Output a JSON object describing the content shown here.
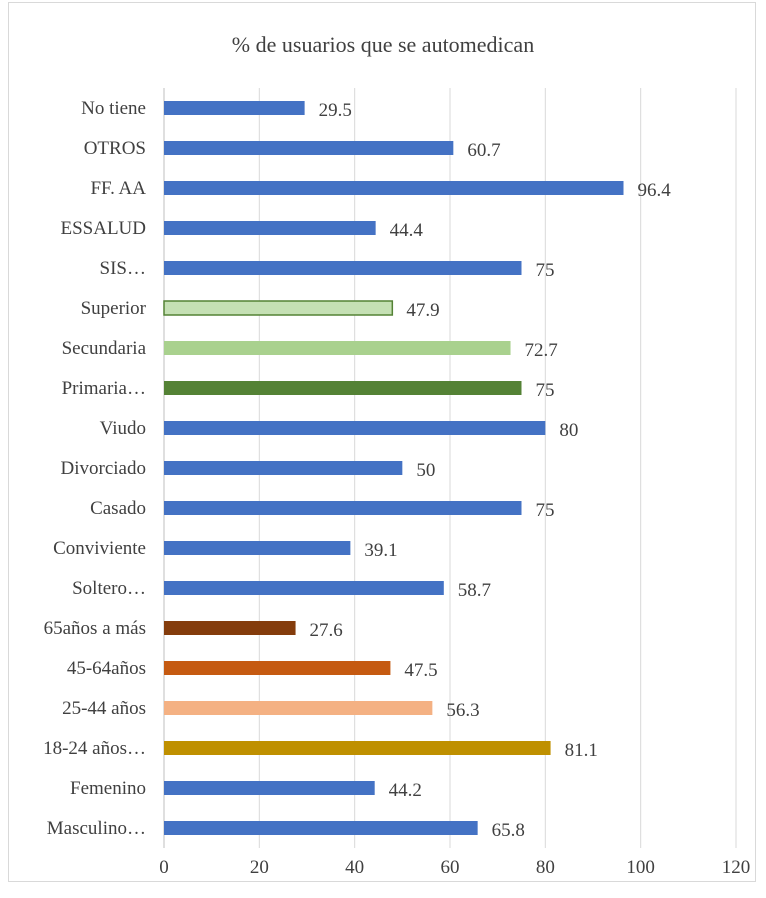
{
  "chart_data": {
    "type": "bar",
    "orientation": "horizontal",
    "title": "% de usuarios que se automedican",
    "xlabel": "",
    "ylabel": "",
    "xlim": [
      0,
      120
    ],
    "xticks": [
      0,
      20,
      40,
      60,
      80,
      100,
      120
    ],
    "grid": true,
    "legend": "none",
    "categories": [
      "No tiene",
      "OTROS",
      "FF. AA",
      "ESSALUD",
      "SIS…",
      "Superior",
      "Secundaria",
      "Primaria…",
      "Viudo",
      "Divorciado",
      "Casado",
      "Conviviente",
      "Soltero…",
      "65años a más",
      "45-64años",
      "25-44 años",
      "18-24 años…",
      "Femenino",
      "Masculino…"
    ],
    "values": [
      29.5,
      60.7,
      96.4,
      44.4,
      75,
      47.9,
      72.7,
      75,
      80,
      50,
      75,
      39.1,
      58.7,
      27.6,
      47.5,
      56.3,
      81.1,
      44.2,
      65.8
    ],
    "value_labels": [
      "29.5",
      "60.7",
      "96.4",
      "44.4",
      "75",
      "47.9",
      "72.7",
      "75",
      "80",
      "50",
      "75",
      "39.1",
      "58.7",
      "27.6",
      "47.5",
      "56.3",
      "81.1",
      "44.2",
      "65.8"
    ],
    "bar_colors": [
      "#4472c4",
      "#4472c4",
      "#4472c4",
      "#4472c4",
      "#4472c4",
      "#c5e0b4",
      "#a9d18e",
      "#548235",
      "#4472c4",
      "#4472c4",
      "#4472c4",
      "#4472c4",
      "#4472c4",
      "#843c0c",
      "#c55a11",
      "#f4b183",
      "#bf9000",
      "#4472c4",
      "#4472c4"
    ],
    "bar_outline_colors": [
      "",
      "",
      "",
      "",
      "",
      "#548235",
      "",
      "",
      "",
      "",
      "",
      "",
      "",
      "",
      "",
      "",
      "",
      "",
      ""
    ]
  }
}
